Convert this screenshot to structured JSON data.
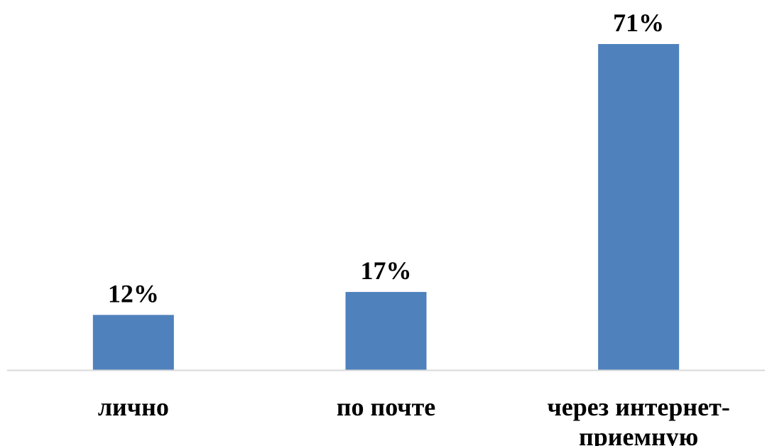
{
  "chart_data": {
    "type": "bar",
    "categories": [
      "лично",
      "по почте",
      "через интернет-приемную"
    ],
    "category_lines": [
      [
        "лично"
      ],
      [
        "по почте"
      ],
      [
        "через интернет-",
        "приемную"
      ]
    ],
    "values": [
      12,
      17,
      71
    ],
    "value_labels": [
      "12%",
      "17%",
      "71%"
    ],
    "unit": "%",
    "title": "",
    "xlabel": "",
    "ylabel": "",
    "ylim": [
      0,
      71
    ],
    "grid": false,
    "legend": "none",
    "bar_color": "#4f81bd",
    "axis_color": "#d9d9d9"
  }
}
